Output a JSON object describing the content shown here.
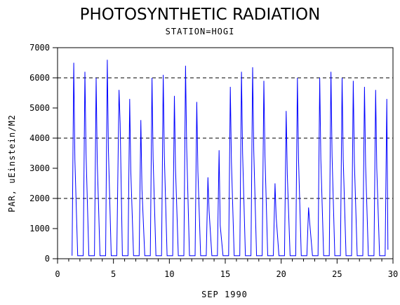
{
  "chart_data": {
    "type": "line",
    "title": "PHOTOSYNTHETIC RADIATION",
    "subtitle": "STATION=HOGI",
    "xlabel": "SEP 1990",
    "ylabel": "PAR, uEinstein/M2",
    "xlim": [
      0,
      30
    ],
    "ylim": [
      0,
      7000
    ],
    "xticks": [
      0,
      5,
      10,
      15,
      20,
      25,
      30
    ],
    "yticks": [
      0,
      1000,
      2000,
      3000,
      4000,
      5000,
      6000,
      7000
    ],
    "reference_lines_y": [
      2000,
      4000,
      6000
    ],
    "colors": {
      "line": "#0000ff",
      "axis": "#000000",
      "reference": "#000000"
    },
    "series": [
      {
        "x": [
          1.3,
          1.45,
          1.55,
          1.8,
          2.3,
          2.45,
          2.55,
          2.8,
          3.3,
          3.45,
          3.55,
          3.8,
          4.3,
          4.45,
          4.55,
          4.8,
          5.3,
          5.5,
          5.6,
          5.8,
          6.3,
          6.45,
          6.55,
          6.8,
          7.3,
          7.45,
          7.55,
          7.8,
          8.3,
          8.45,
          8.55,
          8.8,
          9.3,
          9.45,
          9.55,
          9.8,
          10.3,
          10.45,
          10.55,
          10.8,
          11.3,
          11.45,
          11.55,
          11.8,
          12.3,
          12.45,
          12.55,
          12.8,
          13.3,
          13.45,
          13.55,
          13.8,
          14.3,
          14.45,
          14.55,
          14.8,
          15.3,
          15.45,
          15.55,
          15.8,
          16.3,
          16.45,
          16.55,
          16.8,
          17.3,
          17.45,
          17.55,
          17.8,
          18.3,
          18.45,
          18.55,
          18.8,
          19.3,
          19.45,
          19.55,
          19.8,
          20.3,
          20.45,
          20.55,
          20.8,
          21.3,
          21.45,
          21.55,
          21.8,
          22.3,
          22.45,
          22.55,
          22.8,
          23.3,
          23.45,
          23.55,
          23.8,
          24.3,
          24.45,
          24.55,
          24.8,
          25.3,
          25.45,
          25.55,
          25.8,
          26.3,
          26.45,
          26.55,
          26.8,
          27.3,
          27.45,
          27.55,
          27.8,
          28.3,
          28.45,
          28.55,
          28.8,
          29.3,
          29.45,
          29.55
        ],
        "y": [
          100,
          6500,
          3300,
          100,
          100,
          6200,
          3500,
          100,
          100,
          6000,
          3200,
          100,
          100,
          6600,
          3600,
          100,
          100,
          5600,
          4500,
          100,
          100,
          5300,
          2900,
          100,
          100,
          4600,
          2300,
          100,
          100,
          6000,
          3300,
          100,
          100,
          6100,
          3400,
          100,
          100,
          5400,
          3000,
          100,
          100,
          6400,
          3700,
          100,
          100,
          5200,
          2900,
          100,
          100,
          2700,
          1600,
          100,
          100,
          3600,
          1100,
          100,
          100,
          5700,
          3200,
          100,
          100,
          6200,
          3500,
          100,
          100,
          6350,
          3600,
          100,
          100,
          5900,
          3400,
          100,
          100,
          2500,
          1400,
          100,
          100,
          4900,
          2800,
          100,
          100,
          6000,
          3300,
          100,
          100,
          1700,
          1200,
          100,
          100,
          6000,
          3300,
          100,
          100,
          6200,
          3400,
          100,
          100,
          6000,
          3300,
          100,
          100,
          5900,
          3200,
          100,
          100,
          5700,
          3100,
          100,
          100,
          5600,
          3000,
          100,
          100,
          5300,
          300
        ]
      }
    ]
  }
}
